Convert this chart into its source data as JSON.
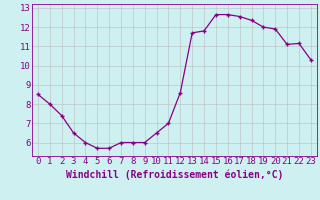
{
  "x": [
    0,
    1,
    2,
    3,
    4,
    5,
    6,
    7,
    8,
    9,
    10,
    11,
    12,
    13,
    14,
    15,
    16,
    17,
    18,
    19,
    20,
    21,
    22,
    23
  ],
  "y": [
    8.5,
    8.0,
    7.4,
    6.5,
    6.0,
    5.7,
    5.7,
    6.0,
    6.0,
    6.0,
    6.5,
    7.0,
    8.6,
    11.7,
    11.8,
    12.65,
    12.65,
    12.55,
    12.35,
    12.0,
    11.9,
    11.1,
    11.15,
    10.3
  ],
  "line_color": "#880088",
  "marker": "+",
  "bg_color": "#cff0f0",
  "grid_color": "#bbbbbb",
  "axis_color": "#880088",
  "xlabel": "Windchill (Refroidissement éolien,°C)",
  "ylim": [
    5.3,
    13.2
  ],
  "xlim": [
    -0.5,
    23.5
  ],
  "yticks": [
    6,
    7,
    8,
    9,
    10,
    11,
    12,
    13
  ],
  "xticks": [
    0,
    1,
    2,
    3,
    4,
    5,
    6,
    7,
    8,
    9,
    10,
    11,
    12,
    13,
    14,
    15,
    16,
    17,
    18,
    19,
    20,
    21,
    22,
    23
  ],
  "tick_color": "#880088",
  "font_size": 6.5,
  "xlabel_font_size": 7.0,
  "line_width": 0.9,
  "marker_size": 3.5,
  "marker_edge_width": 1.0
}
